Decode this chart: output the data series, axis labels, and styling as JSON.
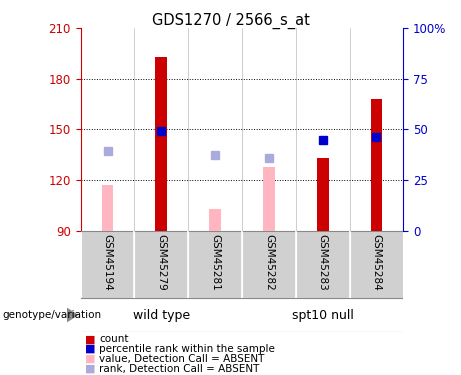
{
  "title": "GDS1270 / 2566_s_at",
  "samples": [
    "GSM45194",
    "GSM45279",
    "GSM45281",
    "GSM45282",
    "GSM45283",
    "GSM45284"
  ],
  "ylim_left": [
    90,
    210
  ],
  "ylim_right": [
    0,
    100
  ],
  "yticks_left": [
    90,
    120,
    150,
    180,
    210
  ],
  "yticks_right": [
    0,
    25,
    50,
    75,
    100
  ],
  "ytick_right_labels": [
    "0",
    "25",
    "50",
    "75",
    "100%"
  ],
  "red_bar_values": [
    null,
    193,
    null,
    null,
    133,
    168
  ],
  "pink_bar_values": [
    117,
    null,
    103,
    128,
    null,
    null
  ],
  "blue_square_values": [
    null,
    49,
    null,
    null,
    45,
    46
  ],
  "light_blue_square_values": [
    137,
    null,
    135,
    133,
    null,
    null
  ],
  "red_bar_color": "#CC0000",
  "pink_bar_color": "#FFB6C1",
  "blue_sq_color": "#0000CC",
  "light_blue_sq_color": "#AAAADD",
  "bg_color": "#FFFFFF",
  "plot_bg_color": "#FFFFFF",
  "left_axis_color": "#CC0000",
  "right_axis_color": "#0000CC",
  "grid_color": "#000000",
  "tick_label_area_color": "#D0D0D0",
  "group_area_color": "#66DD66",
  "bar_width": 0.4,
  "wild_type_indices": [
    0,
    1,
    2
  ],
  "spt10_null_indices": [
    3,
    4,
    5
  ],
  "legend_items": [
    {
      "label": "count",
      "color": "#CC0000"
    },
    {
      "label": "percentile rank within the sample",
      "color": "#0000CC"
    },
    {
      "label": "value, Detection Call = ABSENT",
      "color": "#FFB6C1"
    },
    {
      "label": "rank, Detection Call = ABSENT",
      "color": "#AAAADD"
    }
  ]
}
